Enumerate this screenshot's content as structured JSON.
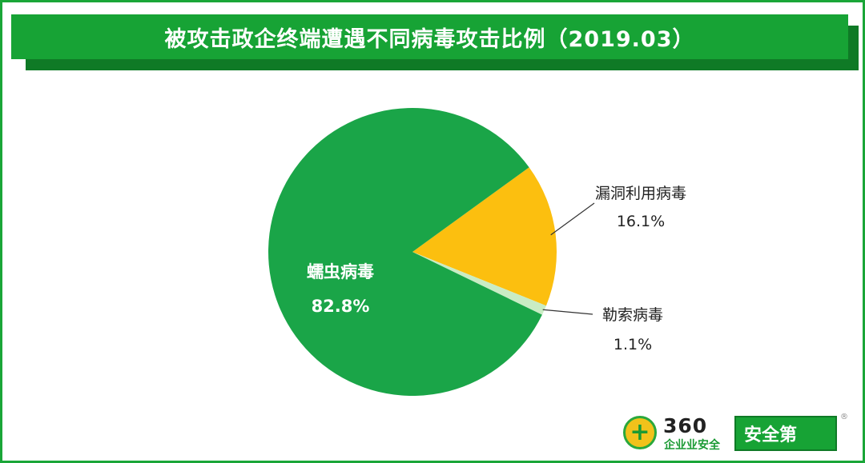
{
  "title": "被攻击政企终端遭遇不同病毒攻击比例（2019.03）",
  "colors": {
    "frame": "#1aa638",
    "title_bar": "#17a335",
    "title_shadow": "#0f7a26",
    "worm": "#1aa548",
    "exploit": "#fcbf0f",
    "ransom": "#c9ecc4"
  },
  "chart_data": {
    "type": "pie",
    "title": "被攻击政企终端遭遇不同病毒攻击比例（2019.03）",
    "slices": [
      {
        "label": "蠕虫病毒",
        "value": 82.8,
        "value_label": "82.8%",
        "color": "#1aa548"
      },
      {
        "label": "漏洞利用病毒",
        "value": 16.1,
        "value_label": "16.1%",
        "color": "#fcbf0f"
      },
      {
        "label": "勒索病毒",
        "value": 1.1,
        "value_label": "1.1%",
        "color": "#c9ecc4"
      }
    ],
    "legend": "none"
  },
  "logo": {
    "brand_number": "360",
    "subtitle": "企业业安全",
    "badge": "安全第",
    "icon": "plus-icon",
    "registered": "®"
  }
}
